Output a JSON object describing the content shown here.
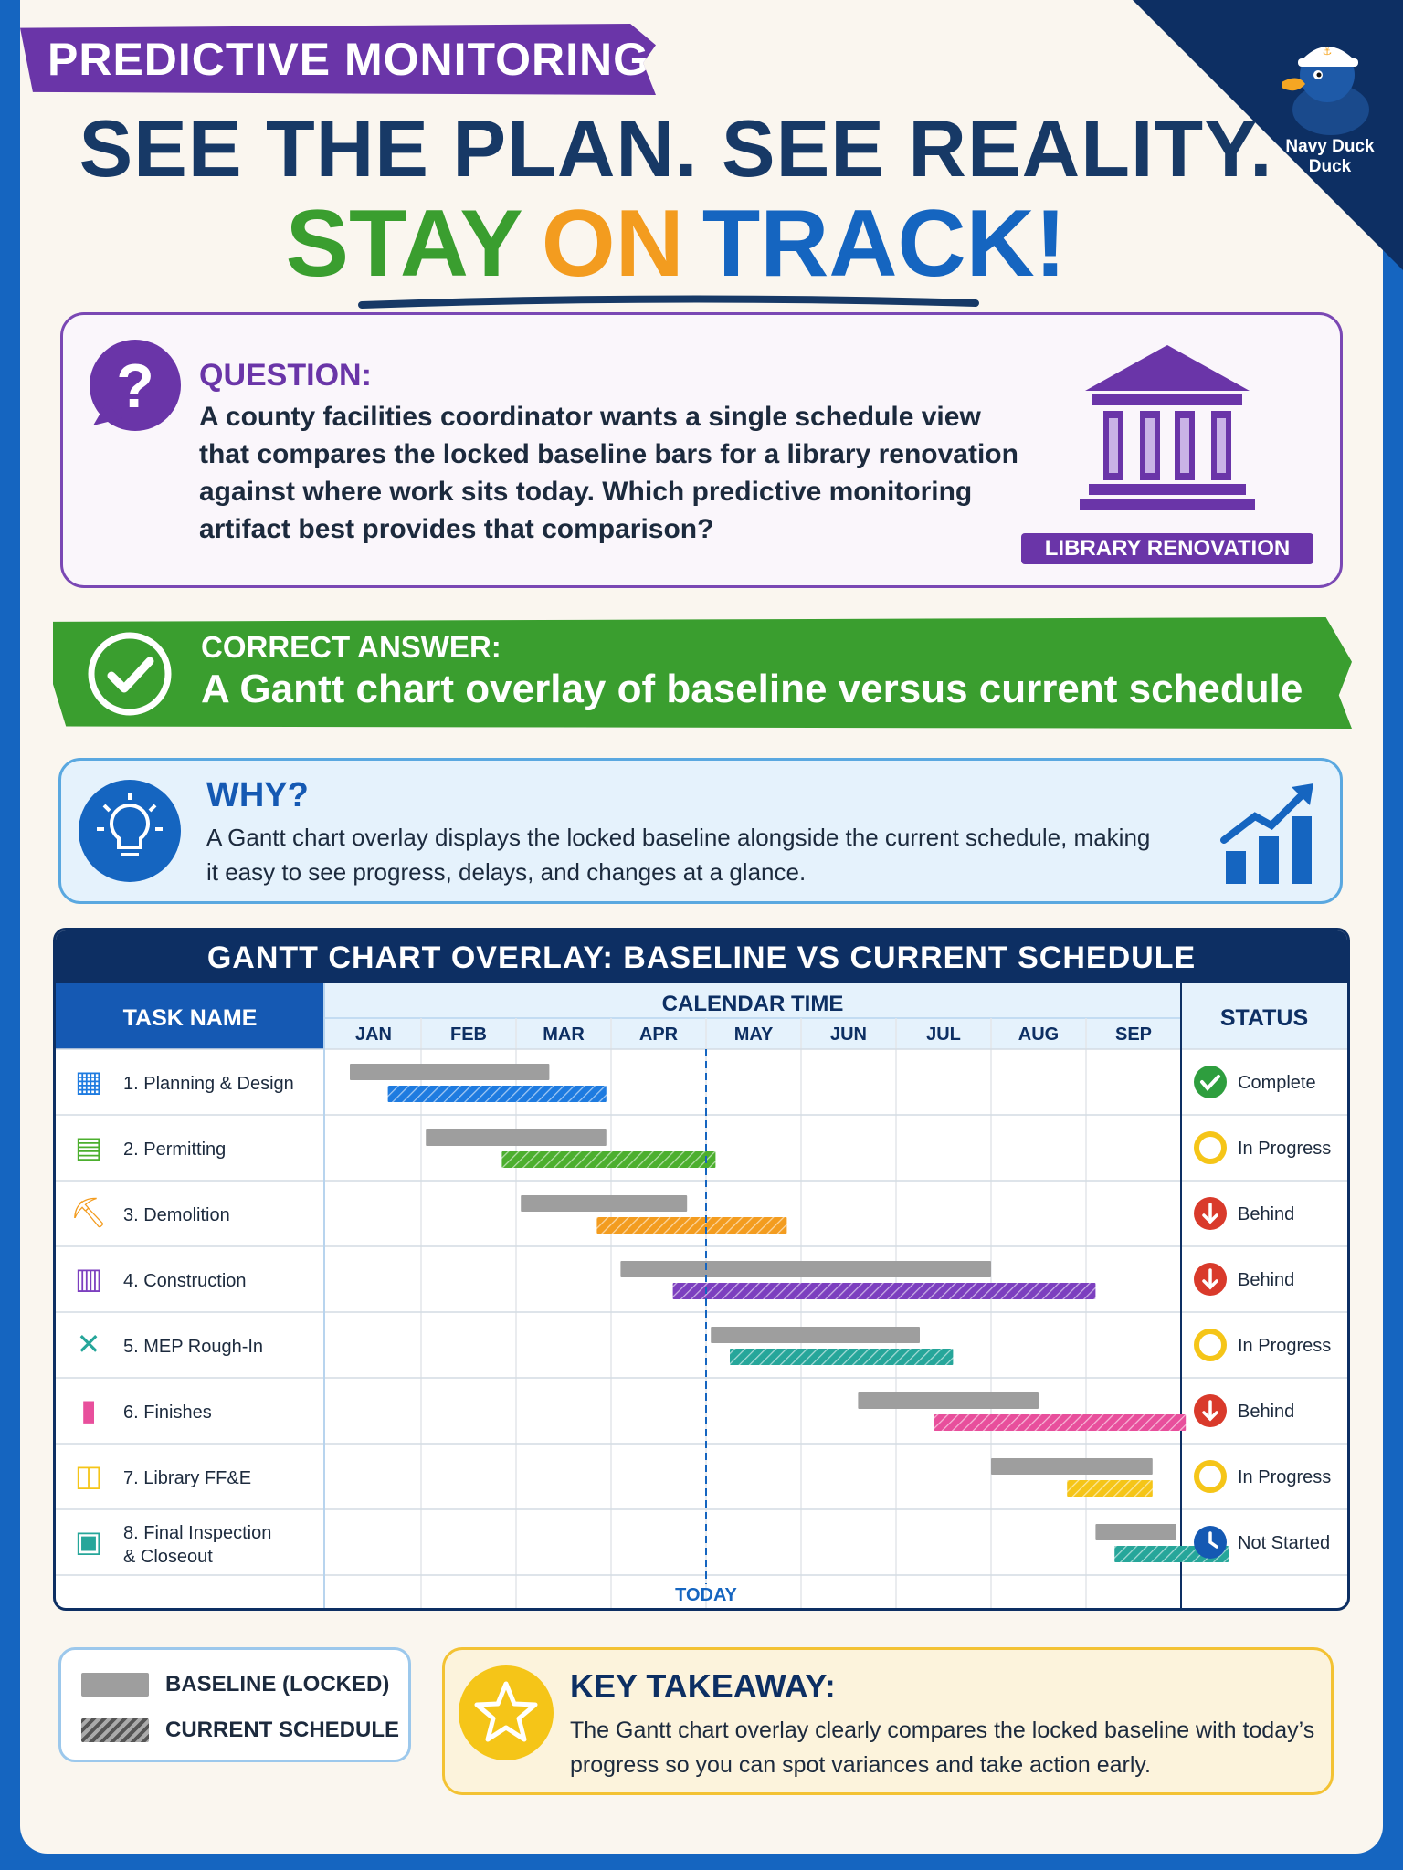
{
  "header": {
    "topic": "PREDICTIVE MONITORING",
    "headline": "SEE THE PLAN. SEE REALITY.",
    "tagline": [
      "STAY",
      "ON",
      "TRACK!"
    ],
    "brand": "Navy Duck Duck"
  },
  "question": {
    "label": "QUESTION:",
    "text": "A county facilities coordinator wants a single schedule view that compares the locked baseline bars for a library renovation against where work sits today. Which predictive monitoring artifact best provides that comparison?",
    "badge": "LIBRARY RENOVATION"
  },
  "answer": {
    "label": "CORRECT ANSWER:",
    "text": "A Gantt chart overlay of baseline versus current schedule"
  },
  "why": {
    "label": "WHY?",
    "text": "A Gantt chart overlay displays the locked baseline alongside the current schedule, making it easy to see progress, delays, and changes at a glance."
  },
  "chart_data": {
    "type": "gantt",
    "title": "GANTT CHART OVERLAY: BASELINE VS CURRENT SCHEDULE",
    "task_header": "TASK NAME",
    "time_header": "CALENDAR TIME",
    "status_header": "STATUS",
    "months": [
      "JAN",
      "FEB",
      "MAR",
      "APR",
      "MAY",
      "JUN",
      "JUL",
      "AUG",
      "SEP"
    ],
    "today_label": "TODAY",
    "today_month": 4.0,
    "tasks": [
      {
        "name": "1. Planning & Design",
        "icon": "blueprint-icon",
        "color": "#1e7be0",
        "baseline": [
          0.25,
          2.35
        ],
        "current": [
          0.65,
          2.95
        ],
        "status": "Complete",
        "status_kind": "complete"
      },
      {
        "name": "2. Permitting",
        "icon": "document-icon",
        "color": "#4caf2e",
        "baseline": [
          1.05,
          2.95
        ],
        "current": [
          1.85,
          4.1
        ],
        "status": "In Progress",
        "status_kind": "progress"
      },
      {
        "name": "3. Demolition",
        "icon": "excavator-icon",
        "color": "#f39c1f",
        "baseline": [
          2.05,
          3.8
        ],
        "current": [
          2.85,
          4.85
        ],
        "status": "Behind",
        "status_kind": "behind"
      },
      {
        "name": "4. Construction",
        "icon": "bricks-icon",
        "color": "#7c3fbf",
        "baseline": [
          3.1,
          7.0
        ],
        "current": [
          3.65,
          8.1
        ],
        "status": "Behind",
        "status_kind": "behind"
      },
      {
        "name": "5. MEP Rough-In",
        "icon": "tools-icon",
        "color": "#26a69a",
        "baseline": [
          4.05,
          6.25
        ],
        "current": [
          4.25,
          6.6
        ],
        "status": "In Progress",
        "status_kind": "progress"
      },
      {
        "name": "6. Finishes",
        "icon": "paint-roller-icon",
        "color": "#e84f9c",
        "baseline": [
          5.6,
          7.5
        ],
        "current": [
          6.4,
          9.05
        ],
        "status": "Behind",
        "status_kind": "behind"
      },
      {
        "name": "7. Library FF&E",
        "icon": "book-icon",
        "color": "#f5c518",
        "baseline": [
          7.0,
          8.7
        ],
        "current": [
          7.8,
          8.7
        ],
        "status": "In Progress",
        "status_kind": "progress"
      },
      {
        "name": [
          "8. Final Inspection",
          "& Closeout"
        ],
        "icon": "building-icon",
        "color": "#26a69a",
        "baseline": [
          8.1,
          8.95
        ],
        "current": [
          8.3,
          9.5
        ],
        "status": "Not Started",
        "status_kind": "notstarted"
      }
    ],
    "legend": [
      {
        "label": "BASELINE (LOCKED)",
        "kind": "baseline"
      },
      {
        "label": "CURRENT SCHEDULE",
        "kind": "current"
      }
    ],
    "colors": {
      "baseline": "#9e9e9e",
      "header": "#0d2f63",
      "today": "#1565c0"
    }
  },
  "takeaway": {
    "label": "KEY TAKEAWAY:",
    "text": "The Gantt chart overlay clearly compares the locked baseline with today’s progress so you can spot variances and take action early."
  }
}
